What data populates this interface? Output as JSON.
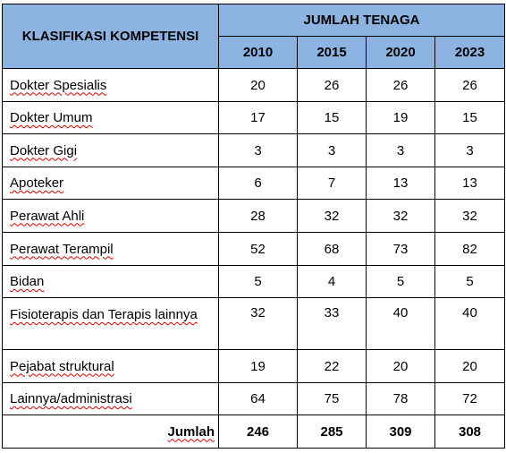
{
  "table": {
    "header_category": "KLASIFIKASI KOMPETENSI",
    "header_group": "JUMLAH TENAGA",
    "years": [
      "2010",
      "2015",
      "2020",
      "2023"
    ],
    "rows": [
      {
        "label": "Dokter Spesialis",
        "values": [
          "20",
          "26",
          "26",
          "26"
        ]
      },
      {
        "label": "Dokter Umum",
        "values": [
          "17",
          "15",
          "19",
          "15"
        ]
      },
      {
        "label": "Dokter Gigi",
        "values": [
          "3",
          "3",
          "3",
          "3"
        ]
      },
      {
        "label": "Apoteker",
        "values": [
          "6",
          "7",
          "13",
          "13"
        ]
      },
      {
        "label": "Perawat Ahli",
        "values": [
          "28",
          "32",
          "32",
          "32"
        ]
      },
      {
        "label": "Perawat Terampil",
        "values": [
          "52",
          "68",
          "73",
          "82"
        ]
      },
      {
        "label": "Bidan",
        "values": [
          "5",
          "4",
          "5",
          "5"
        ]
      },
      {
        "label": "Fisioterapis dan Terapis lainnya",
        "values": [
          "32",
          "33",
          "40",
          "40"
        ]
      },
      {
        "label": "Pejabat struktural",
        "values": [
          "19",
          "22",
          "20",
          "20"
        ]
      },
      {
        "label": "Lainnya/administrasi",
        "values": [
          "64",
          "75",
          "78",
          "72"
        ]
      }
    ],
    "total": {
      "label": "Jumlah",
      "values": [
        "246",
        "285",
        "309",
        "308"
      ]
    }
  }
}
